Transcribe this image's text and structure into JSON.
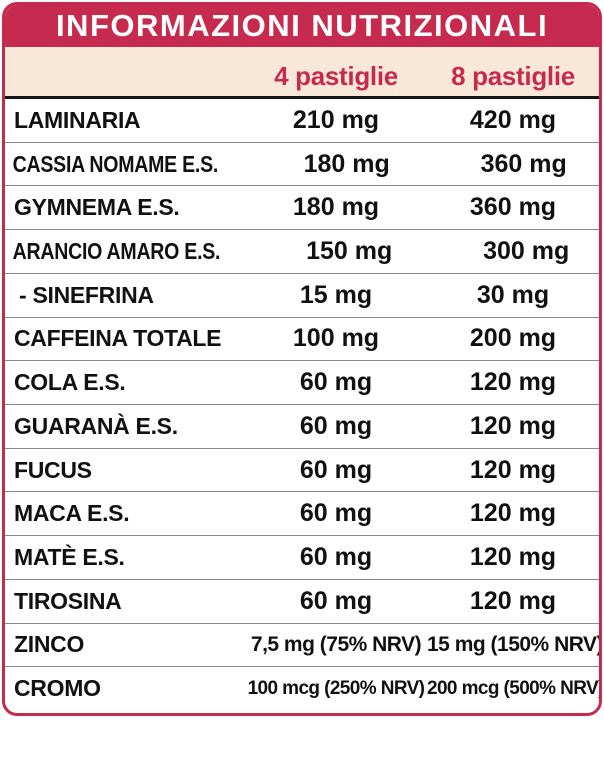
{
  "header": {
    "title": "INFORMAZIONI NUTRIZIONALI",
    "columns": [
      "4 pastiglie",
      "8 pastiglie"
    ]
  },
  "colors": {
    "accent": "#C62B4F",
    "subheader_bg": "#F9E8D8",
    "title_text": "#FFFFFF",
    "row_text": "#111111",
    "divider": "#8a8a8a"
  },
  "rows": [
    {
      "label": "LAMINARIA",
      "per_4": "210 mg",
      "per_8": "420 mg"
    },
    {
      "label": "CASSIA NOMAME E.S.",
      "per_4": "180 mg",
      "per_8": "360 mg"
    },
    {
      "label": "GYMNEMA E.S.",
      "per_4": "180 mg",
      "per_8": "360 mg"
    },
    {
      "label": "ARANCIO AMARO E.S.",
      "per_4": "150 mg",
      "per_8": "300 mg"
    },
    {
      "label": "- SINEFRINA",
      "per_4": "15 mg",
      "per_8": "30 mg"
    },
    {
      "label": "CAFFEINA TOTALE",
      "per_4": "100 mg",
      "per_8": "200 mg"
    },
    {
      "label": "COLA E.S.",
      "per_4": "60 mg",
      "per_8": "120 mg"
    },
    {
      "label": "GUARANÀ E.S.",
      "per_4": "60 mg",
      "per_8": "120 mg"
    },
    {
      "label": "FUCUS",
      "per_4": "60 mg",
      "per_8": "120 mg"
    },
    {
      "label": "MACA E.S.",
      "per_4": "60 mg",
      "per_8": "120 mg"
    },
    {
      "label": "MATÈ E.S.",
      "per_4": "60 mg",
      "per_8": "120 mg"
    },
    {
      "label": "TIROSINA",
      "per_4": "60 mg",
      "per_8": "120 mg"
    },
    {
      "label": "ZINCO",
      "per_4": "7,5 mg (75% NRV)",
      "per_8": "15 mg (150% NRV)"
    },
    {
      "label": "CROMO",
      "per_4": "100 mcg (250% NRV)",
      "per_8": "200 mcg (500% NRV)"
    }
  ]
}
